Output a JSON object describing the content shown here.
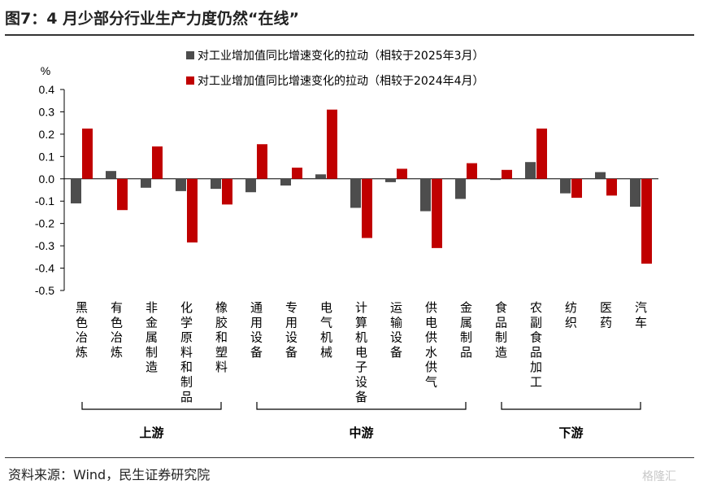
{
  "title": "图7：4 月少部分行业生产力度仍然“在线”",
  "source": "资料来源：Wind，民生证券研究院",
  "watermark": "格隆汇",
  "colors": {
    "series1": "#4d4d4d",
    "series2": "#c00000",
    "axis": "#000000"
  },
  "chart_data": {
    "type": "bar",
    "ylabel": "%",
    "ylim": [
      -0.5,
      0.4
    ],
    "yticks": [
      "0.4",
      "0.3",
      "0.2",
      "0.1",
      "0.0",
      "-0.1",
      "-0.2",
      "-0.3",
      "-0.4",
      "-0.5"
    ],
    "ytick_values": [
      0.4,
      0.3,
      0.2,
      0.1,
      0.0,
      -0.1,
      -0.2,
      -0.3,
      -0.4,
      -0.5
    ],
    "grid": false,
    "legend_position": "top-center",
    "categories": [
      "黑色冶炼",
      "有色冶炼",
      "非金属制造",
      "化学原料和制品",
      "橡胶和塑料",
      "通用设备",
      "专用设备",
      "电气机械",
      "计算机电子设备",
      "运输设备",
      "供电供水供气",
      "金属制品",
      "食品制造",
      "农副食品加工",
      "纺织",
      "医药",
      "汽车"
    ],
    "series": [
      {
        "name": "对工业增加值同比增速变化的拉动（相较于2025年3月）",
        "values": [
          -0.11,
          0.035,
          -0.04,
          -0.055,
          -0.045,
          -0.06,
          -0.03,
          0.02,
          -0.13,
          -0.015,
          -0.145,
          -0.09,
          -0.005,
          0.075,
          -0.065,
          0.03,
          -0.125
        ]
      },
      {
        "name": "对工业增加值同比增速变化的拉动（相较于2024年4月）",
        "values": [
          0.225,
          -0.14,
          0.145,
          -0.285,
          -0.115,
          0.155,
          0.05,
          0.31,
          -0.265,
          0.045,
          -0.31,
          0.07,
          0.04,
          0.225,
          -0.085,
          -0.075,
          -0.38
        ]
      }
    ],
    "groups": [
      {
        "label": "上游",
        "from": 0,
        "to": 4
      },
      {
        "label": "中游",
        "from": 5,
        "to": 11
      },
      {
        "label": "下游",
        "from": 12,
        "to": 16
      }
    ]
  }
}
